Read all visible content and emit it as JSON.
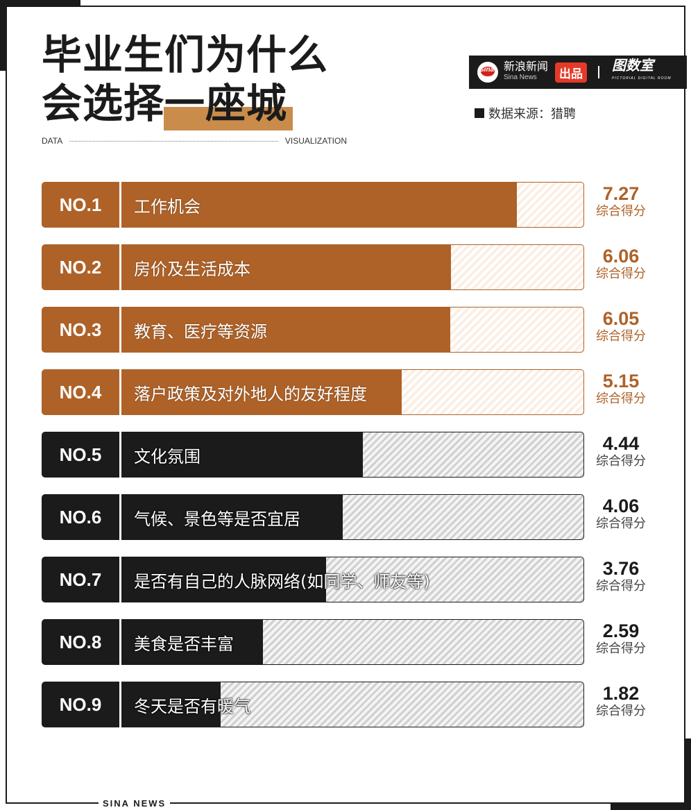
{
  "title": {
    "line1": "毕业生们为什么",
    "line2": "会选择一座城"
  },
  "tagline": {
    "left": "DATA",
    "right": "VISUALIZATION"
  },
  "brand": {
    "sina_logo": "Sina",
    "name_cn": "新浪新闻",
    "name_en": "Sina News",
    "badge": "出品",
    "partner": "图数室",
    "partner_en": "PICTORIAL DIGITAL ROOM"
  },
  "source": "数据来源：猎聘",
  "footer": "SINA  NEWS",
  "score_suffix": "综合得分",
  "colors": {
    "accent": "#ae6228",
    "dark": "#1b1b1b",
    "highlight": "#c98c4b"
  },
  "chart_data": {
    "type": "bar",
    "orientation": "horizontal",
    "title": "毕业生们为什么会选择一座城",
    "xlabel": "",
    "ylabel": "",
    "xlim": [
      0,
      8.5
    ],
    "categories": [
      "工作机会",
      "房价及生活成本",
      "教育、医疗等资源",
      "落户政策及对外地人的友好程度",
      "文化氛围",
      "气候、景色等是否宜居",
      "是否有自己的人脉网络(如同学、师友等)",
      "美食是否丰富",
      "冬天是否有暖气"
    ],
    "ranks": [
      "NO.1",
      "NO.2",
      "NO.3",
      "NO.4",
      "NO.5",
      "NO.6",
      "NO.7",
      "NO.8",
      "NO.9"
    ],
    "values": [
      7.27,
      6.06,
      6.05,
      5.15,
      4.44,
      4.06,
      3.76,
      2.59,
      1.82
    ],
    "value_labels": [
      "7.27",
      "6.06",
      "6.05",
      "5.15",
      "4.44",
      "4.06",
      "3.76",
      "2.59",
      "1.82"
    ],
    "highlight_top": 4
  }
}
